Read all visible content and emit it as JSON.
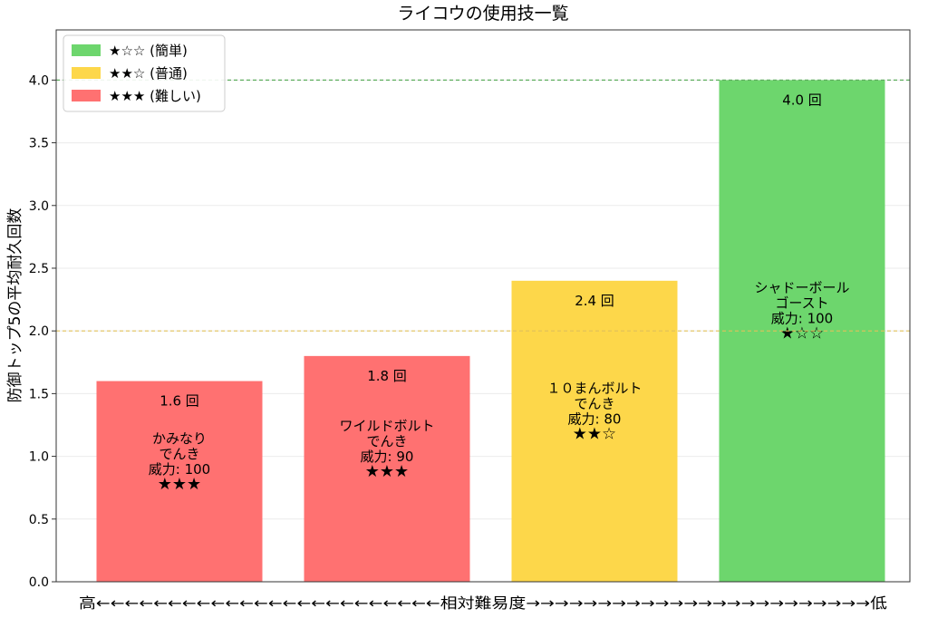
{
  "chart_data": {
    "type": "bar",
    "title": "ライコウの使用技一覧",
    "xlabel": "高←←←←←←←←←←←←←←←←←←←←←←←←相対難易度→→→→→→→→→→→→→→→→→→→→→→→→低",
    "ylabel": "防御トップ5の平均耐久回数",
    "ylim": [
      0,
      4.4
    ],
    "yticks": [
      "0.0",
      "0.5",
      "1.0",
      "1.5",
      "2.0",
      "2.5",
      "3.0",
      "3.5",
      "4.0"
    ],
    "grid": true,
    "legend_position": "top-left",
    "legend": [
      {
        "label": "★☆☆ (簡単)",
        "color": "#6dd66d"
      },
      {
        "label": "★★☆ (普通)",
        "color": "#fdd74a"
      },
      {
        "label": "★★★ (難しい)",
        "color": "#ff7171"
      }
    ],
    "reference_lines": [
      {
        "value": 4.0,
        "color": "#5fae5f"
      },
      {
        "value": 2.0,
        "color": "#e1c15a"
      }
    ],
    "bars": [
      {
        "value": 1.6,
        "value_label": "1.6 回",
        "lines": [
          "かみなり",
          "でんき",
          "威力: 100",
          "★★★"
        ],
        "color": "#ff7171"
      },
      {
        "value": 1.8,
        "value_label": "1.8 回",
        "lines": [
          "ワイルドボルト",
          "でんき",
          "威力: 90",
          "★★★"
        ],
        "color": "#ff7171"
      },
      {
        "value": 2.4,
        "value_label": "2.4 回",
        "lines": [
          "１０まんボルト",
          "でんき",
          "威力: 80",
          "★★☆"
        ],
        "color": "#fdd74a"
      },
      {
        "value": 4.0,
        "value_label": "4.0 回",
        "lines": [
          "シャドーボール",
          "ゴースト",
          "威力: 100",
          "★☆☆"
        ],
        "color": "#6dd66d"
      }
    ]
  }
}
